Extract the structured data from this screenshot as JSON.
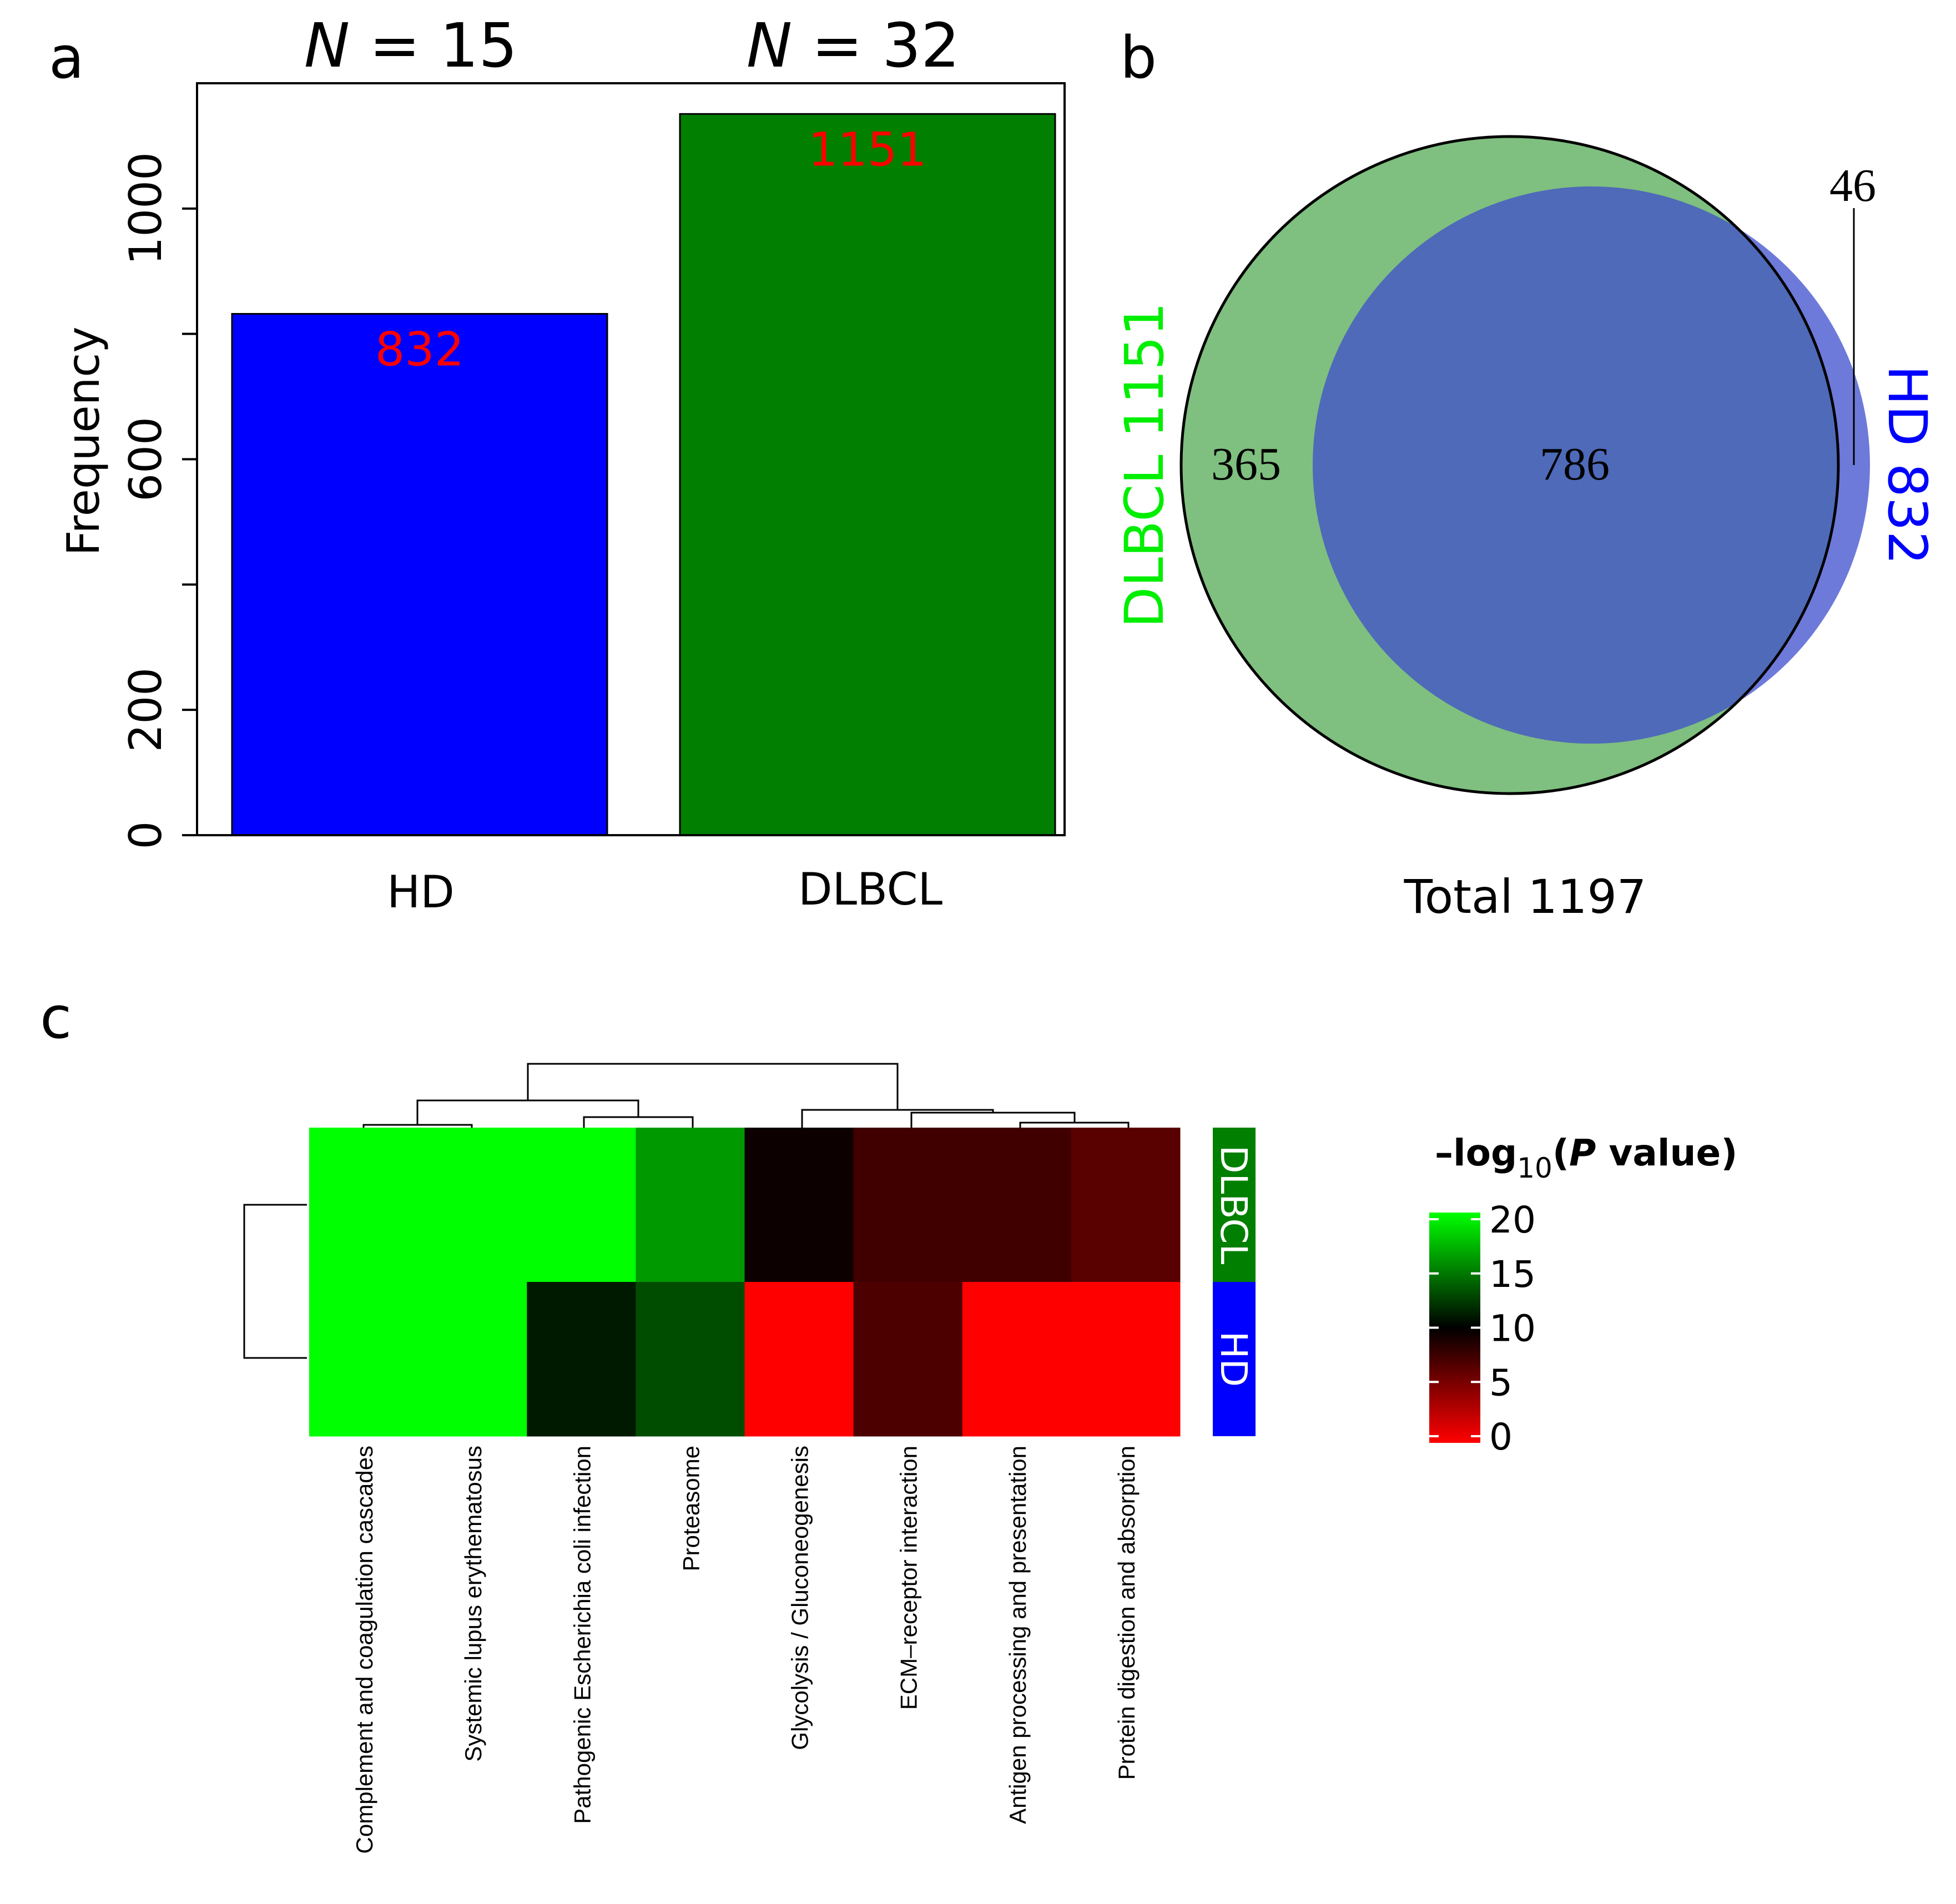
{
  "panels": {
    "a": "a",
    "b": "b",
    "c": "c"
  },
  "chart_data": [
    {
      "id": "a",
      "type": "bar",
      "categories": [
        "HD",
        "DLBCL"
      ],
      "values": [
        832,
        1151
      ],
      "value_labels": [
        "832",
        "1151"
      ],
      "group_titles": [
        {
          "prefix": "N",
          "rest": " = 15"
        },
        {
          "prefix": "N",
          "rest": " = 32"
        }
      ],
      "colors": [
        "#0000ff",
        "#007f00"
      ],
      "label_color": "#ff0000",
      "ylabel": "Frequency",
      "ylim": [
        0,
        1200
      ],
      "yticks": [
        0,
        200,
        600,
        1000
      ],
      "ytick_labels": [
        "0",
        "200",
        "600",
        "1000"
      ],
      "yticks_unlabeled": [
        400,
        800
      ]
    },
    {
      "id": "b",
      "type": "venn",
      "sets": [
        {
          "name": "DLBCL 1151",
          "color": "#7fbf7f",
          "label_color": "#00ee00"
        },
        {
          "name": "HD 832",
          "color": "#3d4ecc",
          "label_color": "#0000ff"
        }
      ],
      "regions": {
        "dlbcl_only": "365",
        "both": "786",
        "hd_only": "46"
      },
      "total_label": "Total 1197"
    },
    {
      "id": "c",
      "type": "heatmap",
      "columns": [
        "Complement and coagulation cascades",
        "Systemic lupus erythematosus",
        "Pathogenic Escherichia coli infection",
        "Proteasome",
        "Glycolysis / Gluconeogenesis",
        "ECM–receptor interaction",
        "Antigen processing and presentation",
        "Protein digestion and absorption"
      ],
      "rows": [
        "DLBCL",
        "HD"
      ],
      "row_colors": [
        "#007f00",
        "#0000ff"
      ],
      "values": [
        [
          20,
          20,
          20,
          16,
          9.5,
          7.5,
          7.5,
          6.5
        ],
        [
          20,
          20,
          11,
          13,
          0,
          7,
          0,
          0
        ]
      ],
      "color_scale": {
        "min": 0,
        "mid": 10,
        "max": 20,
        "low_color": "#ff0000",
        "mid_color": "#000000",
        "high_color": "#00ff00"
      },
      "legend": {
        "title_prefix": "–log",
        "title_sub": "10",
        "title_open": "(",
        "title_p": "P",
        "title_rest": " value)",
        "ticks": [
          0,
          5,
          10,
          15,
          20
        ],
        "tick_labels": [
          "0",
          "5",
          "10",
          "15",
          "20"
        ]
      }
    }
  ]
}
